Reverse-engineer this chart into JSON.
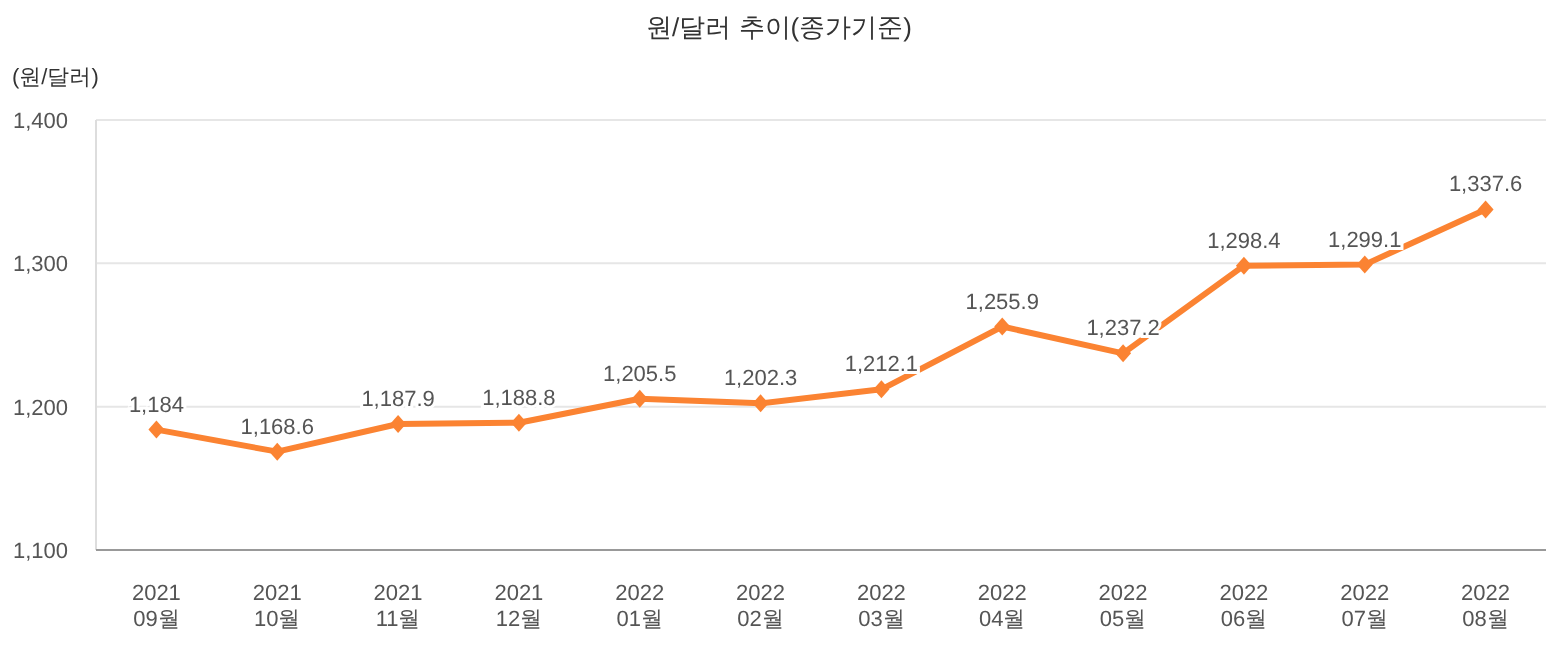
{
  "chart_data": {
    "type": "line",
    "title": "원/달러 추이(종가기준)",
    "ylabel": "(원/달러)",
    "categories": [
      "2021 09월",
      "2021 10월",
      "2021 11월",
      "2021 12월",
      "2022 01월",
      "2022 02월",
      "2022 03월",
      "2022 04월",
      "2022 05월",
      "2022 06월",
      "2022 07월",
      "2022 08월"
    ],
    "series": [
      {
        "color": "#fb8332",
        "values": [
          1184,
          1168.6,
          1187.9,
          1188.8,
          1205.5,
          1202.3,
          1212.1,
          1255.9,
          1237.2,
          1298.4,
          1299.1,
          1337.6
        ],
        "value_labels": [
          "1,184",
          "1,168.6",
          "1,187.9",
          "1,188.8",
          "1,205.5",
          "1,202.3",
          "1,212.1",
          "1,255.9",
          "1,237.2",
          "1,298.4",
          "1,299.1",
          "1,337.6"
        ]
      }
    ],
    "ylim": [
      1100,
      1400
    ],
    "yticks": [
      {
        "value": 1100,
        "label": "1,100"
      },
      {
        "value": 1200,
        "label": "1,200"
      },
      {
        "value": 1300,
        "label": "1,300"
      },
      {
        "value": 1400,
        "label": "1,400"
      }
    ],
    "grid": "y",
    "marker": "diamond",
    "line_style": "solid"
  }
}
